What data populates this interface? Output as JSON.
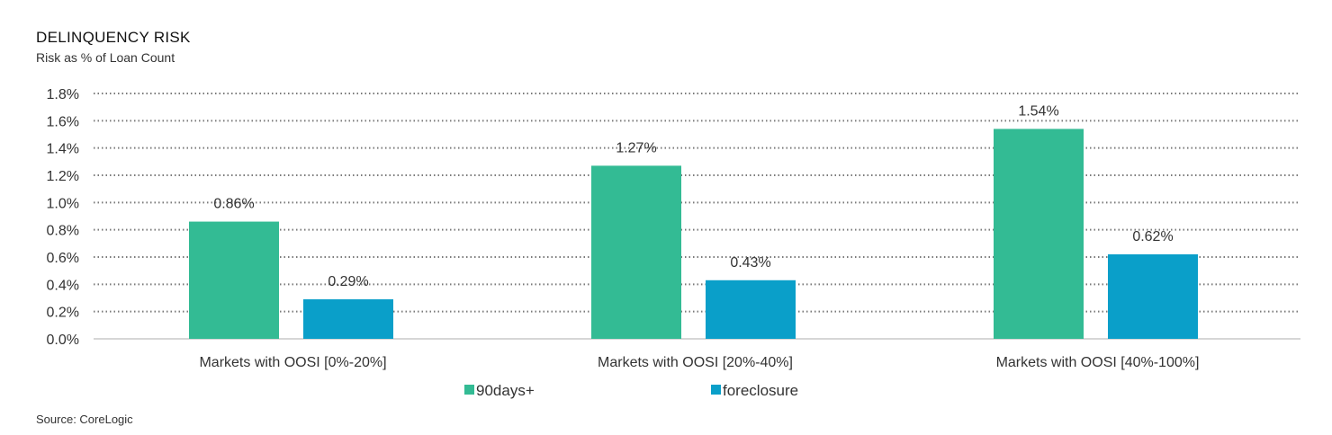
{
  "header": {
    "title": "DELINQUENCY RISK",
    "subtitle": "Risk as % of Loan Count"
  },
  "footer": {
    "source": "Source: CoreLogic"
  },
  "chart_data": {
    "type": "bar",
    "title": "DELINQUENCY RISK",
    "subtitle": "Risk as % of Loan Count",
    "xlabel": "",
    "ylabel": "",
    "categories": [
      "Markets with OOSI [0%-20%]",
      "Markets with OOSI [20%-40%]",
      "Markets with OOSI [40%-100%]"
    ],
    "series": [
      {
        "name": "90days+",
        "color": "#33bb94",
        "values": [
          0.86,
          1.27,
          1.54
        ],
        "labels": [
          "0.86%",
          "1.27%",
          "1.54%"
        ]
      },
      {
        "name": "foreclosure",
        "color": "#0a9fc9",
        "values": [
          0.29,
          0.43,
          0.62
        ],
        "labels": [
          "0.29%",
          "0.43%",
          "0.62%"
        ]
      }
    ],
    "ylim": [
      0,
      1.8
    ],
    "yticks": [
      0,
      0.2,
      0.4,
      0.6,
      0.8,
      1.0,
      1.2,
      1.4,
      1.6,
      1.8
    ],
    "ytick_labels": [
      "0.0%",
      "0.2%",
      "0.4%",
      "0.6%",
      "0.8%",
      "1.0%",
      "1.2%",
      "1.4%",
      "1.6%",
      "1.8%"
    ],
    "grid": "horizontal dotted",
    "legend": "bottom-center"
  }
}
